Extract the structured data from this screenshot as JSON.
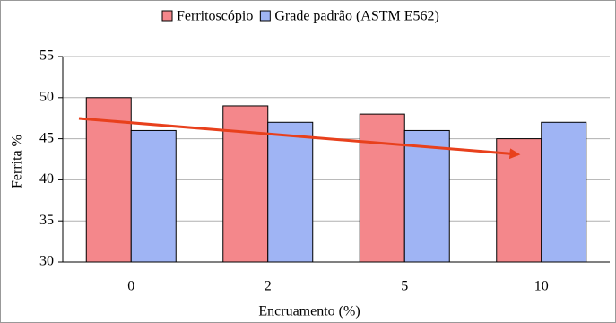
{
  "chart_data": {
    "type": "bar",
    "categories": [
      "0",
      "2",
      "5",
      "10"
    ],
    "series": [
      {
        "name": "Ferritoscópio",
        "color": "#f4878b",
        "values": [
          50,
          49,
          48,
          45
        ]
      },
      {
        "name": "Grade padrão (ASTM E562)",
        "color": "#9fb4f4",
        "values": [
          46,
          47,
          46,
          47
        ]
      }
    ],
    "x_label": "Encruamento (%)",
    "y_label": "Ferrita %",
    "ylim": [
      30,
      55
    ],
    "yticks": [
      30,
      35,
      40,
      45,
      50,
      55
    ],
    "grid": true,
    "legend": "top"
  }
}
